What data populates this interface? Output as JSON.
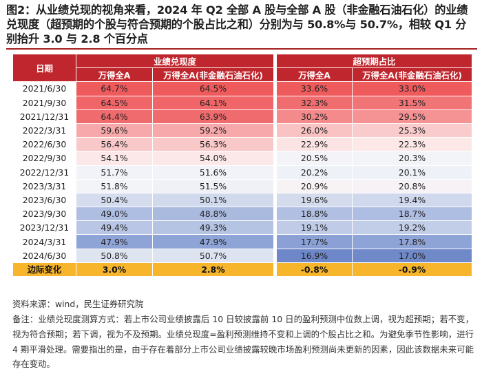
{
  "title": "图2：从业绩兑现的视角来看，2024 年 Q2 全部 A 股与全部 A 股（非金融石油石化）的业绩兑现度（超预期的个股与符合预期的个股占比之和）分别为与 50.8%与 50.7%，相较 Q1 分别抬升 3.0 与 2.8 个百分点",
  "table": {
    "date_header": "日期",
    "group_headers": [
      "业绩兑现度",
      "超预期占比"
    ],
    "sub_headers": [
      "万得全A",
      "万得全A(非金融石油石化)",
      "万得全A",
      "万得全A(非金融石油石化)"
    ],
    "rows": [
      {
        "date": "2021/6/30",
        "values": [
          "64.7%",
          "64.5%",
          "33.6%",
          "33.0%"
        ],
        "colors": [
          "#ef5b5d",
          "#ef5b5d",
          "#ef5b5d",
          "#ef5b5d"
        ]
      },
      {
        "date": "2021/9/30",
        "values": [
          "64.5%",
          "64.1%",
          "32.3%",
          "31.5%"
        ],
        "colors": [
          "#f06568",
          "#f06568",
          "#f06d6f",
          "#f17477"
        ]
      },
      {
        "date": "2021/12/31",
        "values": [
          "64.4%",
          "63.9%",
          "30.2%",
          "29.5%"
        ],
        "colors": [
          "#f06b6d",
          "#f06b6d",
          "#f48a8c",
          "#f59294"
        ]
      },
      {
        "date": "2022/3/31",
        "values": [
          "59.6%",
          "59.2%",
          "26.0%",
          "25.3%"
        ],
        "colors": [
          "#f6a8aa",
          "#f6a8aa",
          "#f9c3c4",
          "#facbcc"
        ]
      },
      {
        "date": "2022/6/30",
        "values": [
          "56.4%",
          "56.3%",
          "22.9%",
          "22.3%"
        ],
        "colors": [
          "#f9c8c9",
          "#f9c8c9",
          "#fce4e4",
          "#fde8e8"
        ]
      },
      {
        "date": "2022/9/30",
        "values": [
          "54.1%",
          "54.0%",
          "20.5%",
          "20.3%"
        ],
        "colors": [
          "#fce8e9",
          "#fce8e9",
          "#f4f4f8",
          "#f3f4f8"
        ]
      },
      {
        "date": "2022/12/31",
        "values": [
          "51.7%",
          "51.6%",
          "20.2%",
          "20.1%"
        ],
        "colors": [
          "#f1f3f8",
          "#f1f3f8",
          "#eef1f7",
          "#eef1f7"
        ]
      },
      {
        "date": "2023/3/31",
        "values": [
          "51.8%",
          "51.5%",
          "20.9%",
          "20.8%"
        ],
        "colors": [
          "#f3f4f8",
          "#eff1f7",
          "#f7f2f4",
          "#f6f2f5"
        ]
      },
      {
        "date": "2023/6/30",
        "values": [
          "50.4%",
          "50.1%",
          "19.6%",
          "19.4%"
        ],
        "colors": [
          "#d5dcee",
          "#d1d9ec",
          "#d3dbed",
          "#cfd8ec"
        ]
      },
      {
        "date": "2023/9/30",
        "values": [
          "49.0%",
          "48.8%",
          "18.8%",
          "18.7%"
        ],
        "colors": [
          "#aebde2",
          "#aabadf",
          "#b0bfe2",
          "#aebde2"
        ]
      },
      {
        "date": "2023/12/31",
        "values": [
          "49.4%",
          "49.3%",
          "19.1%",
          "19.2%"
        ],
        "colors": [
          "#b9c6e5",
          "#b6c4e4",
          "#bfcbe7",
          "#c2cde8"
        ]
      },
      {
        "date": "2024/3/31",
        "values": [
          "47.9%",
          "47.9%",
          "17.7%",
          "17.8%"
        ],
        "colors": [
          "#8ea3d6",
          "#8ea3d6",
          "#8ba1d5",
          "#8fa4d6"
        ]
      },
      {
        "date": "2024/6/30",
        "values": [
          "50.8%",
          "50.7%",
          "16.9%",
          "17.0%"
        ],
        "colors": [
          "#dfe4f1",
          "#dde3f1",
          "#6d87c8",
          "#7089c9"
        ]
      }
    ],
    "final_row": {
      "label": "边际变化",
      "values": [
        "3.0%",
        "2.8%",
        "-0.8%",
        "-0.9%"
      ]
    }
  },
  "source": "资料来源：wind，民生证券研究院",
  "note": "备注：业绩兑现度测算方式：若上市公司业绩披露后 10 日较披露前 10 日的盈利预测中位数上调，视为超预期；若不变，视为符合预期；若下调，视为不及预期。业绩兑现度=盈利预测维持不变和上调的个股占比之和。为避免季节性影响，进行 4 期平滑处理。需要指出的是，由于存在着部分上市公司业绩披露较晚市场盈利预测尚未更新的因素，因此该数据未来可能存在变动。",
  "colors": {
    "header_red": "#c0262d",
    "title_rule": "#a51d1d",
    "final_row": "#f7b52c"
  }
}
